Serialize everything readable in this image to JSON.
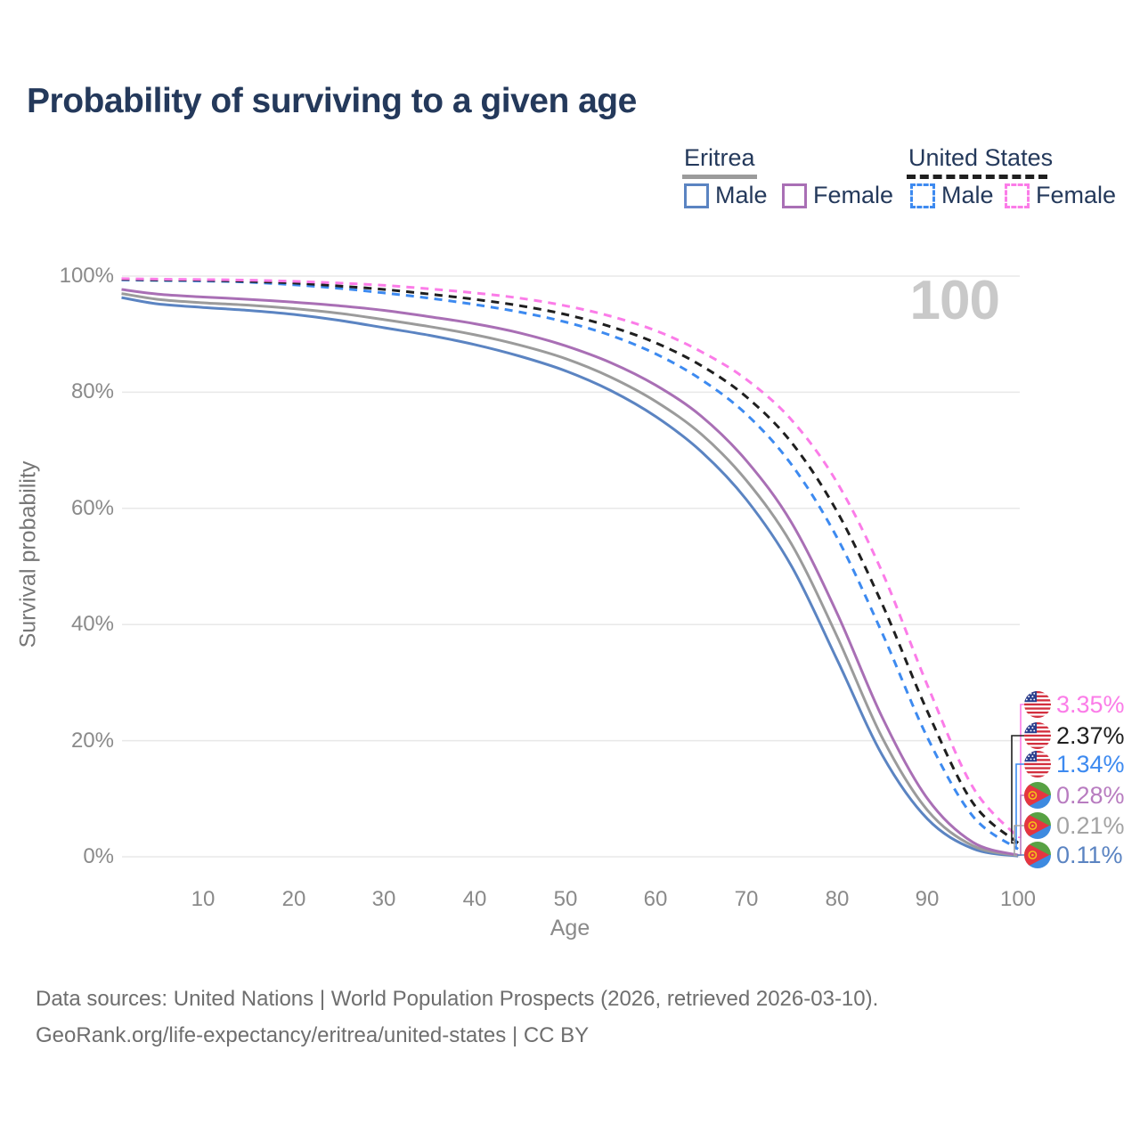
{
  "title": "Probability of surviving to a given age",
  "legend": {
    "eritrea": {
      "label": "Eritrea",
      "male": "Male",
      "female": "Female"
    },
    "united_states": {
      "label": "United States",
      "male": "Male",
      "female": "Female"
    }
  },
  "hover_age": "100",
  "y_axis": {
    "label": "Survival probability",
    "ticks": [
      "100%",
      "80%",
      "60%",
      "40%",
      "20%",
      "0%"
    ]
  },
  "x_axis": {
    "label": "Age",
    "ticks": [
      "10",
      "20",
      "30",
      "40",
      "50",
      "60",
      "70",
      "80",
      "90",
      "100"
    ]
  },
  "end_labels": [
    {
      "series": "us_female",
      "flag": "us",
      "value": "3.35%",
      "color": "#fb7ce8"
    },
    {
      "series": "us_both",
      "flag": "us",
      "value": "2.37%",
      "color": "#1f1f1f"
    },
    {
      "series": "us_male",
      "flag": "us",
      "value": "1.34%",
      "color": "#3d8af0"
    },
    {
      "series": "eritrea_female",
      "flag": "eritrea",
      "value": "0.28%",
      "color": "#b87cc0"
    },
    {
      "series": "eritrea_both",
      "flag": "eritrea",
      "value": "0.21%",
      "color": "#a3a3a3"
    },
    {
      "series": "eritrea_male",
      "flag": "eritrea",
      "value": "0.11%",
      "color": "#5b84c2"
    }
  ],
  "footer": {
    "line1": "Data sources: United Nations | World Population Prospects (2026, retrieved 2026-03-10).",
    "line2": "GeoRank.org/life-expectancy/eritrea/united-states | CC BY"
  },
  "chart_data": {
    "type": "line",
    "title": "Probability of surviving to a given age",
    "xlabel": "Age",
    "ylabel": "Survival probability",
    "xlim": [
      1,
      100
    ],
    "ylim_pct": [
      0,
      100
    ],
    "grid": "horizontal",
    "legend_position": "top-right",
    "x_ages": [
      1,
      5,
      10,
      15,
      20,
      25,
      30,
      35,
      40,
      45,
      50,
      55,
      60,
      65,
      70,
      75,
      80,
      85,
      90,
      95,
      100
    ],
    "series": [
      {
        "id": "eritrea_male",
        "name": "Eritrea Male",
        "color": "#5b84c2",
        "dash": false,
        "values_pct": [
          96.3,
          95.2,
          94.6,
          94.1,
          93.4,
          92.4,
          91.1,
          89.8,
          88.2,
          86.2,
          83.7,
          80.3,
          75.8,
          69.8,
          61.5,
          50.0,
          34.0,
          17.5,
          6.5,
          1.4,
          0.11
        ]
      },
      {
        "id": "eritrea_both",
        "name": "Eritrea Both sexes",
        "color": "#9b9b9b",
        "dash": false,
        "values_pct": [
          97.0,
          96.0,
          95.4,
          95.0,
          94.4,
          93.6,
          92.5,
          91.3,
          89.9,
          88.1,
          85.8,
          82.6,
          78.4,
          72.8,
          64.8,
          53.8,
          38.0,
          20.5,
          8.0,
          1.9,
          0.21
        ]
      },
      {
        "id": "eritrea_female",
        "name": "Eritrea Female",
        "color": "#a96fb5",
        "dash": false,
        "values_pct": [
          97.7,
          96.9,
          96.4,
          96.0,
          95.5,
          94.9,
          94.1,
          93.0,
          91.8,
          90.2,
          88.0,
          85.1,
          81.2,
          75.9,
          68.2,
          57.5,
          42.0,
          24.0,
          10.0,
          2.5,
          0.28
        ]
      },
      {
        "id": "us_male",
        "name": "United States Male",
        "color": "#3d8af0",
        "dash": true,
        "values_pct": [
          99.35,
          99.25,
          99.15,
          98.95,
          98.5,
          97.9,
          97.1,
          96.2,
          95.1,
          93.8,
          92.1,
          89.8,
          86.6,
          82.2,
          76.2,
          67.5,
          55.0,
          38.5,
          20.5,
          7.0,
          1.34
        ]
      },
      {
        "id": "us_both",
        "name": "United States Both sexes",
        "color": "#1f1f1f",
        "dash": true,
        "values_pct": [
          99.45,
          99.35,
          99.28,
          99.1,
          98.8,
          98.3,
          97.7,
          96.9,
          96.0,
          94.9,
          93.4,
          91.3,
          88.5,
          84.6,
          79.2,
          71.3,
          59.5,
          43.5,
          25.0,
          9.3,
          2.37
        ]
      },
      {
        "id": "us_female",
        "name": "United States Female",
        "color": "#fb7ce8",
        "dash": true,
        "values_pct": [
          99.55,
          99.48,
          99.4,
          99.3,
          99.1,
          98.8,
          98.4,
          97.8,
          97.1,
          96.2,
          94.9,
          93.1,
          90.6,
          87.0,
          82.2,
          75.2,
          64.5,
          49.0,
          29.5,
          12.0,
          3.35
        ]
      }
    ],
    "end_values_pct": {
      "us_female": 3.35,
      "us_both": 2.37,
      "us_male": 1.34,
      "eritrea_female": 0.28,
      "eritrea_both": 0.21,
      "eritrea_male": 0.11
    }
  }
}
